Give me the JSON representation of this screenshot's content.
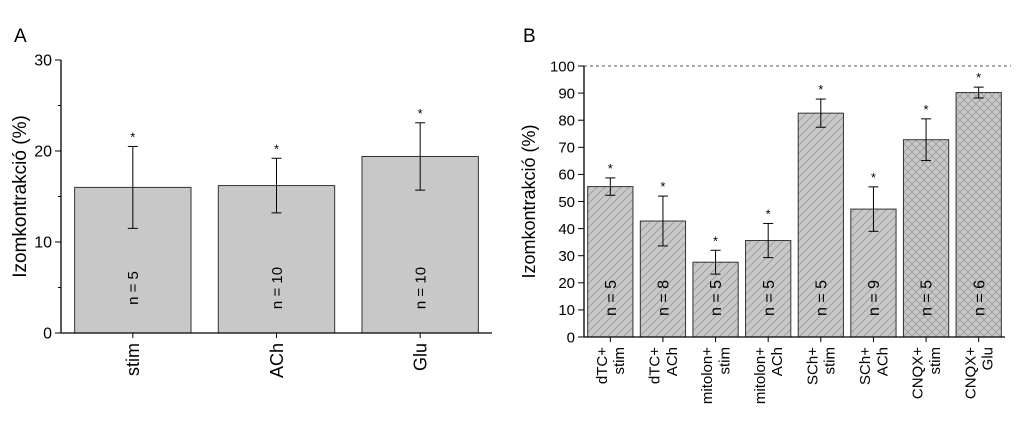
{
  "chart_data": [
    {
      "panel_label": "A",
      "type": "bar",
      "ylabel": "Izomkontrakció (%)",
      "xlabel": "",
      "ylim": [
        0,
        30
      ],
      "yticks": [
        0,
        10,
        20,
        30
      ],
      "categories": [
        [
          "stim"
        ],
        [
          "ACh"
        ],
        [
          "Glu"
        ]
      ],
      "values": [
        16.0,
        16.2,
        19.4
      ],
      "errors": [
        4.5,
        3.0,
        3.7
      ],
      "n_labels": [
        "n = 5",
        "n = 10",
        "n = 10"
      ],
      "significance": [
        "*",
        "*",
        "*"
      ],
      "bar_color": "#c8c8c8",
      "grid": false
    },
    {
      "panel_label": "B",
      "type": "bar",
      "ylabel": "Izomkontrakció (%)",
      "xlabel": "",
      "ylim": [
        0,
        100
      ],
      "yticks": [
        0,
        10,
        20,
        30,
        40,
        50,
        60,
        70,
        80,
        90,
        100
      ],
      "reference_line": 100,
      "categories": [
        [
          "dTC+",
          "stim"
        ],
        [
          "dTC+",
          "ACh"
        ],
        [
          "mitolon+",
          "stim"
        ],
        [
          "mitolon+",
          "ACh"
        ],
        [
          "SCh+",
          "stim"
        ],
        [
          "SCh+",
          "ACh"
        ],
        [
          "CNQX+",
          "stim"
        ],
        [
          "CNQX+",
          "Glu"
        ]
      ],
      "values": [
        55.5,
        42.8,
        27.6,
        35.6,
        82.6,
        47.2,
        72.8,
        90.2
      ],
      "errors": [
        3.2,
        9.2,
        4.4,
        6.3,
        5.2,
        8.2,
        7.7,
        2.0
      ],
      "n_labels": [
        "n = 5",
        "n = 8",
        "n = 5",
        "n = 5",
        "n = 5",
        "n = 9",
        "n = 5",
        "n = 6"
      ],
      "significance": [
        "*",
        "*",
        "*",
        "*",
        "*",
        "*",
        "*",
        "*"
      ],
      "hatch": [
        "diag",
        "diag",
        "diag",
        "diag",
        "diag",
        "diag",
        "cross",
        "cross"
      ],
      "bar_color": "#c8c8c8",
      "grid": false
    }
  ]
}
